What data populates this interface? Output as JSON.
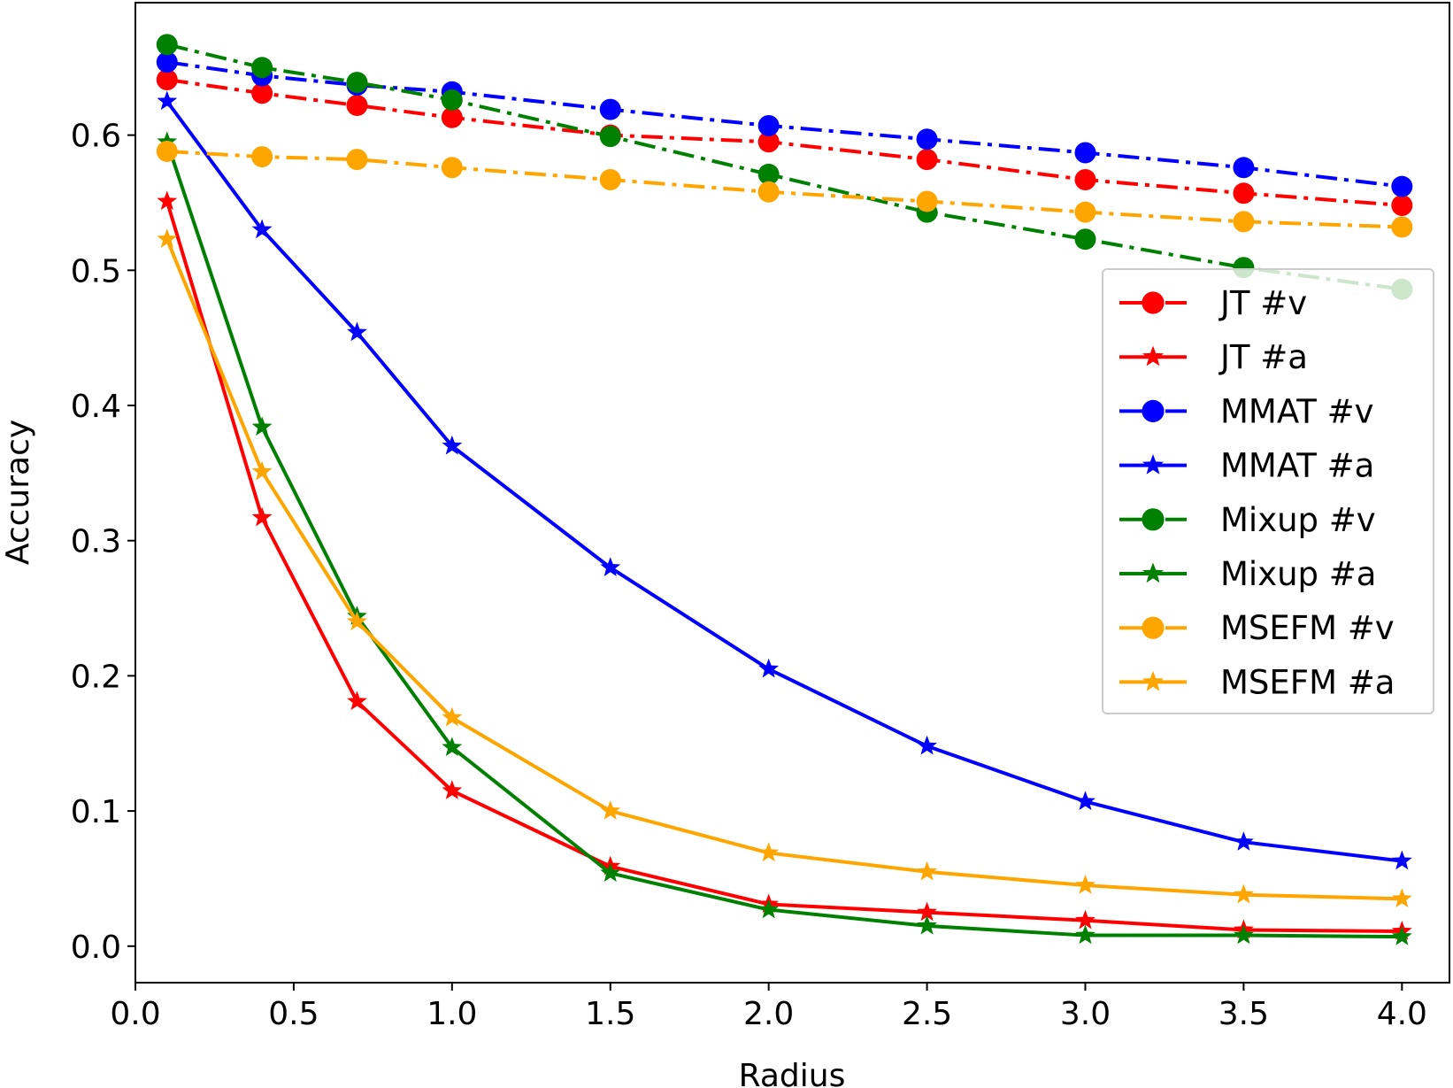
{
  "chart_data": {
    "type": "line",
    "title": "",
    "xlabel": "Radius",
    "ylabel": "Accuracy",
    "xlim": [
      0.0,
      4.15
    ],
    "ylim": [
      -0.027,
      0.698
    ],
    "xticks": [
      "0.0",
      "0.5",
      "1.0",
      "1.5",
      "2.0",
      "2.5",
      "3.0",
      "3.5",
      "4.0"
    ],
    "yticks": [
      "0.0",
      "0.1",
      "0.2",
      "0.3",
      "0.4",
      "0.5",
      "0.6"
    ],
    "grid": false,
    "legend_position": "center-right",
    "x": [
      0.1,
      0.4,
      0.7,
      1.0,
      1.5,
      2.0,
      2.5,
      3.0,
      3.5,
      4.0
    ],
    "series": [
      {
        "name": "JT #v",
        "color": "#ff0000",
        "marker": "circle",
        "linestyle": "dashdot",
        "values": [
          0.641,
          0.631,
          0.622,
          0.613,
          0.6,
          0.595,
          0.582,
          0.567,
          0.557,
          0.548
        ]
      },
      {
        "name": "JT #a",
        "color": "#ff0000",
        "marker": "star",
        "linestyle": "solid",
        "values": [
          0.551,
          0.317,
          0.181,
          0.115,
          0.059,
          0.031,
          0.025,
          0.019,
          0.012,
          0.011
        ]
      },
      {
        "name": "MMAT #v",
        "color": "#0000ff",
        "marker": "circle",
        "linestyle": "dashdot",
        "values": [
          0.654,
          0.644,
          0.637,
          0.632,
          0.619,
          0.607,
          0.597,
          0.587,
          0.576,
          0.562
        ]
      },
      {
        "name": "MMAT #a",
        "color": "#0000ff",
        "marker": "star",
        "linestyle": "solid",
        "values": [
          0.625,
          0.53,
          0.454,
          0.37,
          0.28,
          0.205,
          0.148,
          0.107,
          0.077,
          0.063
        ]
      },
      {
        "name": "Mixup #v",
        "color": "#008000",
        "marker": "circle",
        "linestyle": "dashdot",
        "values": [
          0.667,
          0.65,
          0.639,
          0.626,
          0.599,
          0.571,
          0.543,
          0.523,
          0.502,
          0.486
        ]
      },
      {
        "name": "Mixup #a",
        "color": "#008000",
        "marker": "star",
        "linestyle": "solid",
        "values": [
          0.595,
          0.384,
          0.244,
          0.147,
          0.054,
          0.027,
          0.015,
          0.008,
          0.008,
          0.007
        ]
      },
      {
        "name": "MSEFM #v",
        "color": "#ffa500",
        "marker": "circle",
        "linestyle": "dashdot",
        "values": [
          0.588,
          0.584,
          0.582,
          0.576,
          0.567,
          0.558,
          0.551,
          0.543,
          0.536,
          0.532
        ]
      },
      {
        "name": "MSEFM #a",
        "color": "#ffa500",
        "marker": "star",
        "linestyle": "solid",
        "values": [
          0.523,
          0.351,
          0.24,
          0.169,
          0.1,
          0.069,
          0.055,
          0.045,
          0.038,
          0.035
        ]
      }
    ]
  }
}
